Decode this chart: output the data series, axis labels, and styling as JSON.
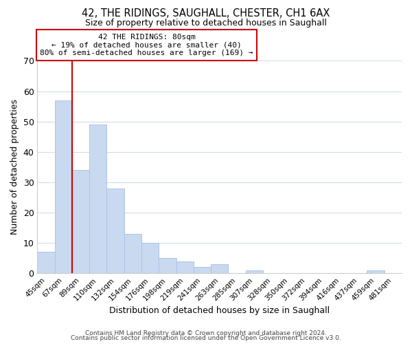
{
  "title": "42, THE RIDINGS, SAUGHALL, CHESTER, CH1 6AX",
  "subtitle": "Size of property relative to detached houses in Saughall",
  "xlabel": "Distribution of detached houses by size in Saughall",
  "ylabel": "Number of detached properties",
  "bar_labels": [
    "45sqm",
    "67sqm",
    "89sqm",
    "110sqm",
    "132sqm",
    "154sqm",
    "176sqm",
    "198sqm",
    "219sqm",
    "241sqm",
    "263sqm",
    "285sqm",
    "307sqm",
    "328sqm",
    "350sqm",
    "372sqm",
    "394sqm",
    "416sqm",
    "437sqm",
    "459sqm",
    "481sqm"
  ],
  "bar_values": [
    7,
    57,
    34,
    49,
    28,
    13,
    10,
    5,
    4,
    2,
    3,
    0,
    1,
    0,
    0,
    0,
    0,
    0,
    0,
    1,
    0
  ],
  "bar_color": "#c9d9f0",
  "bar_edge_color": "#adc4e8",
  "vline_x": 1.5,
  "vline_color": "#cc0000",
  "ylim": [
    0,
    70
  ],
  "yticks": [
    0,
    10,
    20,
    30,
    40,
    50,
    60,
    70
  ],
  "annotation_text": "42 THE RIDINGS: 80sqm\n← 19% of detached houses are smaller (40)\n80% of semi-detached houses are larger (169) →",
  "annotation_box_color": "#ffffff",
  "annotation_box_edge": "#cc0000",
  "footer_line1": "Contains HM Land Registry data © Crown copyright and database right 2024.",
  "footer_line2": "Contains public sector information licensed under the Open Government Licence v3.0.",
  "background_color": "#ffffff",
  "grid_color": "#d0dce8"
}
